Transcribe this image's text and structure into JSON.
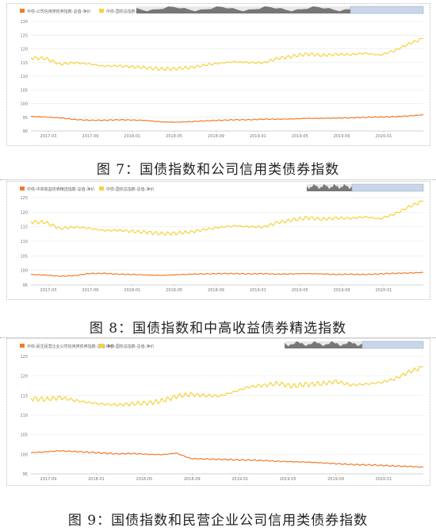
{
  "charts": [
    {
      "caption": "图 7：国债指数和公司信用类债券指数",
      "chart_data": {
        "type": "line",
        "legend_position": "top-left",
        "series": [
          {
            "name": "中债-公司信用类债券指数-总值-净价",
            "color": "#f07c2c",
            "values": [
              95.3,
              95.1,
              94.8,
              94.2,
              93.9,
              93.9,
              94.1,
              94.0,
              93.8,
              93.3,
              93.2,
              93.4,
              93.7,
              93.9,
              94.1,
              94.1,
              94.3,
              94.3,
              94.4,
              94.6,
              94.6,
              94.7,
              94.8,
              95.0,
              95.1,
              95.2,
              95.5,
              95.9
            ]
          },
          {
            "name": "中债-国债总指数-总值-净价",
            "color": "#f5d33b",
            "values": [
              116.7,
              116.5,
              114.4,
              114.9,
              114.5,
              113.7,
              113.8,
              113.4,
              113.1,
              112.6,
              112.8,
              113.2,
              114.1,
              114.8,
              115.3,
              115.0,
              114.9,
              116.5,
              117.3,
              118.1,
              117.6,
              118.0,
              117.9,
              118.4,
              117.7,
              119.3,
              121.8,
              123.8
            ]
          }
        ],
        "x_ticks": [
          "2017-03",
          "2017-09",
          "2018-01",
          "2018-05",
          "2018-09",
          "2019-01",
          "2019-05",
          "2019-09",
          "2020-01"
        ],
        "y_ticks": [
          90,
          95,
          100,
          105,
          110,
          115,
          120,
          125,
          130
        ],
        "ylim": [
          90,
          130
        ],
        "grid": "horizontal"
      }
    },
    {
      "caption": "图 8：国债指数和中高收益债券精选指数",
      "chart_data": {
        "type": "line",
        "legend_position": "top-left",
        "series": [
          {
            "name": "中债-中高收益债券精选指数-总值-净价",
            "color": "#f07c2c",
            "values": [
              98.6,
              98.4,
              98.0,
              98.2,
              98.9,
              99.0,
              98.7,
              98.6,
              98.4,
              98.3,
              98.5,
              98.7,
              98.8,
              98.9,
              98.9,
              98.8,
              98.9,
              98.7,
              98.8,
              98.9,
              98.8,
              98.6,
              98.7,
              98.6,
              98.8,
              99.0,
              99.1,
              99.3
            ]
          },
          {
            "name": "中债-国债总指数-总值-净价",
            "color": "#f5d33b",
            "values": [
              116.7,
              116.5,
              114.4,
              114.9,
              114.5,
              113.7,
              113.8,
              113.4,
              113.1,
              112.6,
              112.8,
              113.2,
              114.1,
              114.8,
              115.3,
              115.0,
              114.9,
              116.5,
              117.3,
              118.1,
              117.6,
              118.0,
              117.9,
              118.4,
              117.7,
              119.3,
              121.8,
              123.8
            ]
          }
        ],
        "x_ticks": [
          "2017-03",
          "2017-09",
          "2018-01",
          "2018-05",
          "2018-09",
          "2019-01",
          "2019-05",
          "2019-09",
          "2020-01"
        ],
        "y_ticks": [
          95,
          100,
          105,
          110,
          115,
          120,
          125
        ],
        "ylim": [
          95,
          125
        ],
        "grid": "horizontal"
      }
    },
    {
      "caption": "图 9：国债指数和民营企业公司信用类债券指数",
      "chart_data": {
        "type": "line",
        "legend_position": "top-left",
        "series": [
          {
            "name": "中债-民生民营企业公司信用类债券指数-总值-净价",
            "color": "#f07c2c",
            "values": [
              100.4,
              100.6,
              100.9,
              100.7,
              100.5,
              100.3,
              100.1,
              100.2,
              100.0,
              99.9,
              100.3,
              98.9,
              98.8,
              98.7,
              98.6,
              98.5,
              98.4,
              98.2,
              98.1,
              98.0,
              97.8,
              97.6,
              97.4,
              97.3,
              97.2,
              97.0,
              96.9,
              96.7
            ]
          },
          {
            "name": "中债-国债总指数-总值-净价",
            "color": "#f5d33b",
            "values": [
              114.3,
              114.0,
              114.5,
              113.8,
              113.2,
              112.8,
              112.6,
              112.9,
              113.1,
              113.6,
              114.8,
              115.3,
              115.0,
              114.9,
              116.0,
              117.2,
              117.6,
              118.1,
              117.4,
              117.9,
              118.0,
              118.6,
              117.7,
              117.9,
              118.3,
              119.2,
              121.0,
              122.3
            ]
          }
        ],
        "x_ticks": [
          "2017-09",
          "2018-01",
          "2018-05",
          "2018-09",
          "2019-01",
          "2019-05",
          "2019-09",
          "2020-01"
        ],
        "y_ticks": [
          95,
          100,
          105,
          110,
          115,
          120,
          125
        ],
        "ylim": [
          95,
          125
        ],
        "grid": "horizontal"
      }
    }
  ]
}
